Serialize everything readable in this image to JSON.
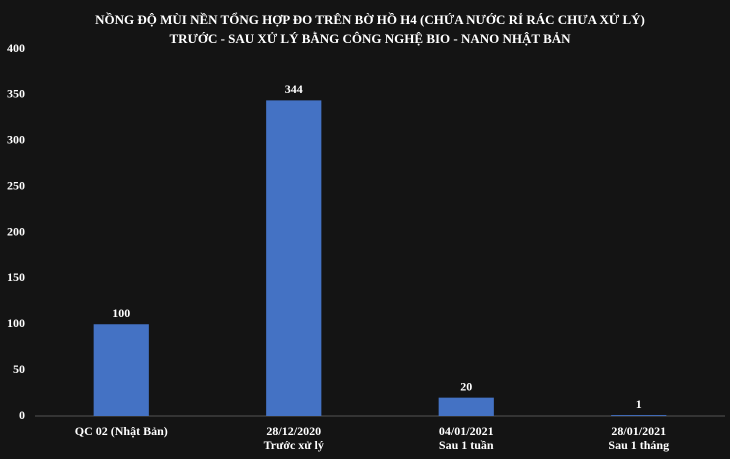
{
  "chart_data": {
    "type": "bar",
    "title": [
      "NỒNG ĐỘ MÙI NỀN TỔNG HỢP  ĐO TRÊN BỜ HỒ H4 (CHỨA NƯỚC RỈ RÁC CHƯA XỬ LÝ)",
      "TRƯỚC - SAU XỬ LÝ BẰNG CÔNG NGHỆ BIO -  NANO NHẬT BẢN"
    ],
    "categories": [
      [
        "QC 02 (Nhật Bản)"
      ],
      [
        "28/12/2020",
        "Trước  xử lý"
      ],
      [
        "04/01/2021",
        "Sau 1 tuần"
      ],
      [
        "28/01/2021",
        "Sau 1 tháng"
      ]
    ],
    "values": [
      100,
      344,
      20,
      1
    ],
    "color": "#4472c4",
    "ylim": [
      0,
      400
    ],
    "yticks": [
      0,
      50,
      100,
      150,
      200,
      250,
      300,
      350,
      400
    ],
    "grid": false
  }
}
